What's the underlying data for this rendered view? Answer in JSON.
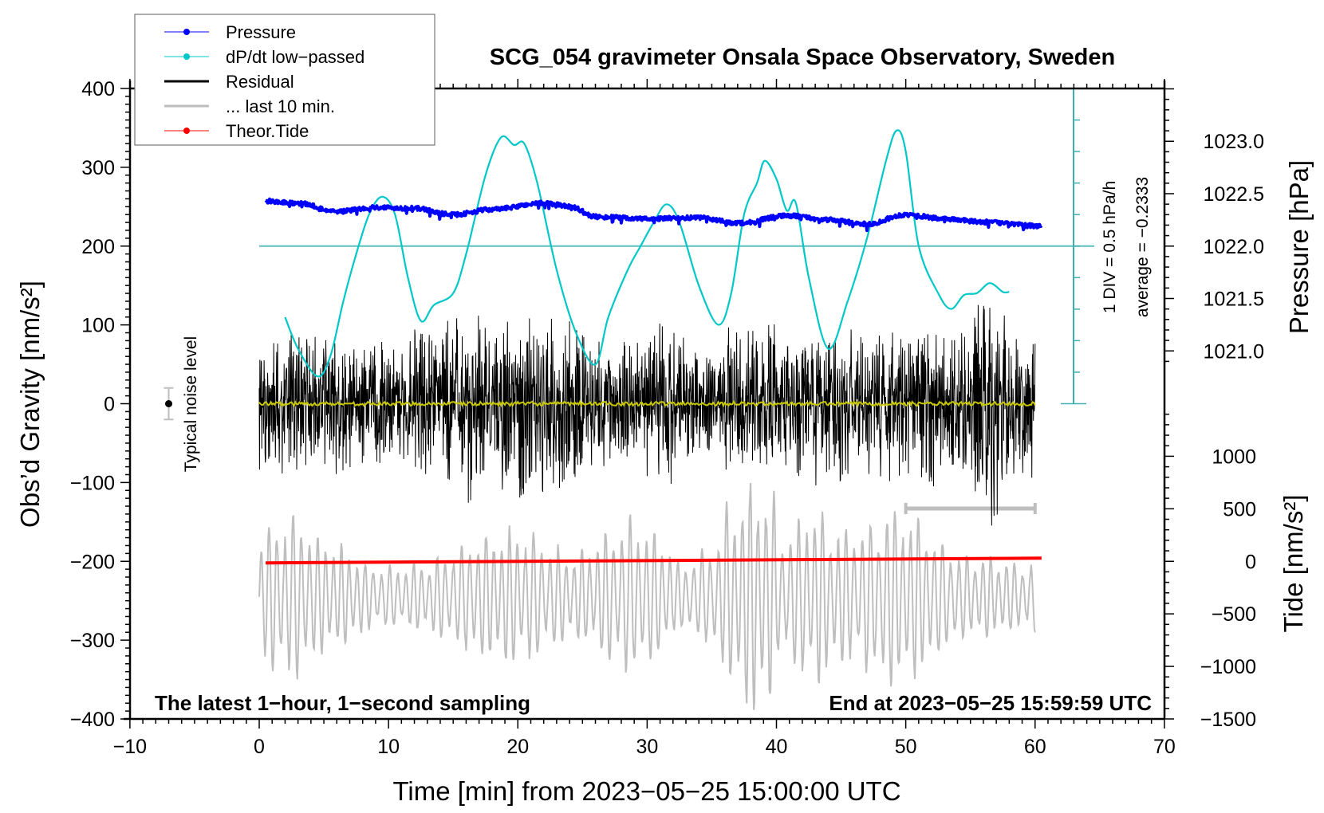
{
  "chart_data": {
    "type": "line",
    "title": "SCG_054 gravimeter Onsala Space Observatory, Sweden",
    "xlabel": "Time [min] from 2023−05−25 15:00:00 UTC",
    "ylabel": "Obs’d Gravity [nm/s²]",
    "ylabel_right_top": "Pressure [hPa]",
    "ylabel_right_bottom": "Tide [nm/s²]",
    "xlim": [
      -10,
      70
    ],
    "ylim": [
      -400,
      400
    ],
    "pressure_lim_labels": [
      1021.0,
      1023.0
    ],
    "tide_lim": [
      -1500,
      1000
    ],
    "x_ticks": [
      "−10",
      "0",
      "10",
      "20",
      "30",
      "40",
      "50",
      "60",
      "70"
    ],
    "x_tick_values": [
      -10,
      0,
      10,
      20,
      30,
      40,
      50,
      60,
      70
    ],
    "y_ticks": [
      "400",
      "300",
      "200",
      "100",
      "0",
      "−100",
      "−200",
      "−300",
      "−400"
    ],
    "y_tick_values": [
      400,
      300,
      200,
      100,
      0,
      -100,
      -200,
      -300,
      -400
    ],
    "pressure_ticks": [
      "1023.0",
      "1022.5",
      "1022.0",
      "1021.5",
      "1021.0"
    ],
    "pressure_tick_values": [
      1023.0,
      1022.5,
      1022.0,
      1021.5,
      1021.0
    ],
    "tide_ticks": [
      "1000",
      "500",
      "0",
      "−500",
      "−1000",
      "−1500"
    ],
    "tide_tick_values": [
      1000,
      500,
      0,
      -500,
      -1000,
      -1500
    ],
    "legend": {
      "placement": "top-left",
      "entries": [
        {
          "label": "Pressure",
          "color": "#0000ff",
          "marker": "dot"
        },
        {
          "label": "dP/dt low−passed",
          "color": "#00c8c8",
          "marker": "dot"
        },
        {
          "label": "Residual",
          "color": "#000000",
          "marker": "line"
        },
        {
          "label": "... last 10 min.",
          "color": "#bebebe",
          "marker": "line"
        },
        {
          "label": "Theor.Tide",
          "color": "#ff0000",
          "marker": "dot"
        }
      ]
    },
    "annotations": {
      "bottom_left": "The latest 1−hour, 1−second sampling",
      "bottom_right": "End at 2023−05−25 15:59:59 UTC",
      "div_scale": "1 DIV = 0.5 hPa/h",
      "average": "average = −0.2333",
      "noise_label": "Typical noise level"
    },
    "dpdt_average": -0.2333,
    "dpdt_per_div": 0.5,
    "noise_level": {
      "x": -7,
      "y": 0,
      "err": 20
    },
    "last10_bar": {
      "x": [
        50,
        60
      ],
      "y": -133
    },
    "series": [
      {
        "name": "Pressure",
        "unit": "hPa",
        "color": "#0000ff",
        "x": [
          0.5,
          3,
          6,
          9,
          12,
          15,
          18,
          22,
          24,
          26,
          30,
          34,
          37,
          41,
          44,
          47,
          50,
          53,
          56,
          60.5
        ],
        "values": [
          1022.43,
          1022.41,
          1022.33,
          1022.37,
          1022.36,
          1022.3,
          1022.35,
          1022.41,
          1022.38,
          1022.28,
          1022.26,
          1022.27,
          1022.22,
          1022.29,
          1022.25,
          1022.21,
          1022.3,
          1022.26,
          1022.23,
          1022.19
        ]
      },
      {
        "name": "dP/dt low-passed",
        "unit": "hPa/h",
        "color": "#00c8c8",
        "x": [
          2,
          3,
          4.5,
          5.5,
          6.5,
          7.5,
          8.5,
          9.5,
          10.5,
          11.5,
          12.5,
          13.5,
          15,
          16,
          17.5,
          18.7,
          19.7,
          20.5,
          21.5,
          23,
          24.5,
          26,
          27,
          28.5,
          29.5,
          30.5,
          31.5,
          32.5,
          34,
          35.5,
          36.5,
          37.5,
          38.5,
          39.1,
          40,
          40.8,
          41.5,
          42.5,
          44,
          45.5,
          47,
          48.5,
          49.3,
          50,
          51,
          52.5,
          53.5,
          54.5,
          55.5,
          56.5,
          57.5,
          58
        ],
        "values": [
          -1.36,
          -1.86,
          -2.3,
          -1.98,
          -1.11,
          -0.36,
          0.27,
          0.55,
          0.27,
          -0.73,
          -1.42,
          -1.17,
          -0.98,
          -0.36,
          0.89,
          1.49,
          1.37,
          1.39,
          0.77,
          -0.61,
          -1.61,
          -2.11,
          -1.36,
          -0.61,
          -0.23,
          0.14,
          0.43,
          0.14,
          -0.86,
          -1.48,
          -0.98,
          0.27,
          0.77,
          1.12,
          0.83,
          0.33,
          0.45,
          -0.73,
          -1.86,
          -1.11,
          -0.11,
          1.14,
          1.6,
          1.27,
          -0.23,
          -0.98,
          -1.23,
          -1.01,
          -0.98,
          -0.82,
          -0.96,
          -0.96
        ]
      },
      {
        "name": "Residual",
        "unit": "nm/s²",
        "color": "#000000",
        "envelope_x_start": [
          0,
          2,
          4,
          6,
          8,
          10,
          12,
          14,
          16,
          18,
          20,
          22,
          24,
          26,
          28,
          30,
          32,
          34,
          36,
          38,
          40,
          42,
          44,
          46,
          48,
          50,
          52,
          54,
          56,
          58
        ],
        "envelope_amplitude": [
          100,
          105,
          90,
          100,
          95,
          80,
          115,
          120,
          140,
          110,
          140,
          130,
          110,
          90,
          90,
          120,
          100,
          70,
          100,
          120,
          90,
          125,
          110,
          90,
          115,
          110,
          105,
          110,
          170,
          100
        ]
      },
      {
        "name": "Residual smoothed",
        "unit": "nm/s²",
        "color": "#c8c800",
        "x": [
          0,
          60
        ],
        "values": [
          0,
          0
        ]
      },
      {
        "name": "... last 10 min.",
        "unit": "nm/s²",
        "color": "#bebebe",
        "center": -245,
        "envelope_x_start": [
          0,
          2,
          4,
          6,
          8,
          10,
          12,
          14,
          16,
          18,
          20,
          22,
          24,
          26,
          28,
          30,
          32,
          34,
          36,
          38,
          40,
          42,
          44,
          46,
          48,
          50,
          52,
          54,
          56,
          58
        ],
        "envelope_amplitude": [
          80,
          100,
          70,
          60,
          40,
          35,
          40,
          50,
          70,
          80,
          80,
          60,
          50,
          70,
          90,
          80,
          40,
          50,
          110,
          150,
          70,
          110,
          80,
          80,
          110,
          100,
          70,
          50,
          50,
          40
        ]
      },
      {
        "name": "Theor.Tide",
        "unit": "nm/s²",
        "color": "#ff0000",
        "x": [
          0.5,
          60.5
        ],
        "values": [
          -15,
          30
        ]
      }
    ]
  }
}
